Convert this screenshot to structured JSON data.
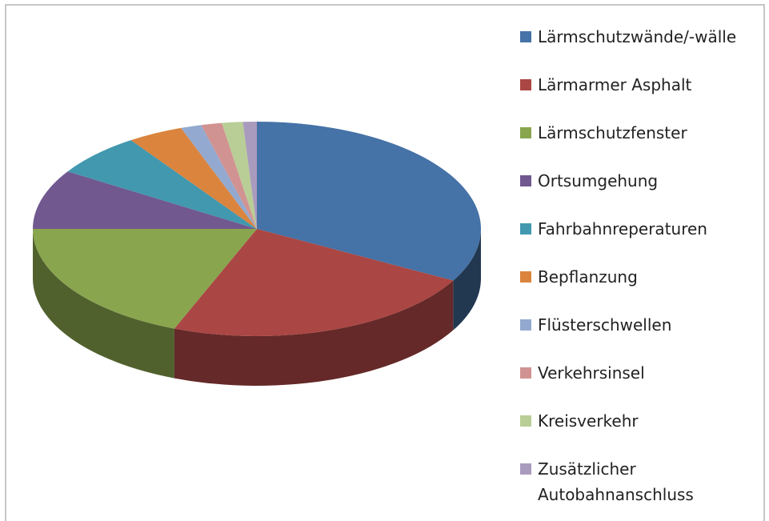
{
  "chart_data": {
    "type": "pie",
    "categories": [
      "Lärmschutzwände/-wälle",
      "Lärmarmer Asphalt",
      "Lärmschutzfenster",
      "Ortsumgehung",
      "Fahrbahnreperaturen",
      "Bepflanzung",
      "Flüsterschwellen",
      "Verkehrsinsel",
      "Kreisverkehr",
      "Zusätzlicher Autobahnanschluss"
    ],
    "values": [
      33,
      23,
      19,
      9,
      6.5,
      4,
      1.5,
      1.5,
      1.5,
      1
    ],
    "colors": [
      "#4572a7",
      "#aa4643",
      "#89a54e",
      "#71588f",
      "#4198af",
      "#db843d",
      "#93a9cf",
      "#d19392",
      "#b9cd96",
      "#a99bbd"
    ],
    "legend": "right"
  }
}
